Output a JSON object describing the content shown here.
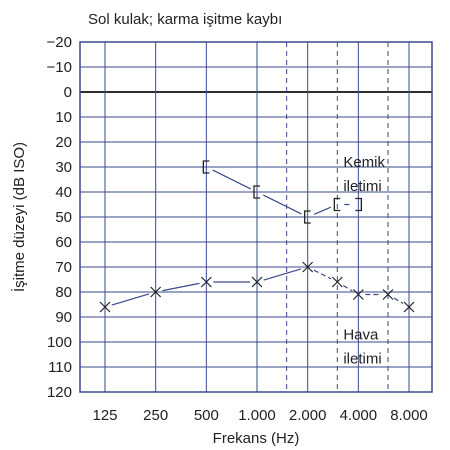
{
  "chart_data": {
    "type": "line",
    "title": "Sol kulak; karma işitme kaybı",
    "xlabel": "Frekans (Hz)",
    "ylabel": "İşitme düzeyi (dB ISO)",
    "x_scale": "log2",
    "y_inverted": true,
    "ylim": [
      -20,
      120
    ],
    "yticks": [
      -20,
      -10,
      0,
      10,
      20,
      30,
      40,
      50,
      60,
      70,
      80,
      90,
      100,
      110,
      120
    ],
    "ytick_labels": [
      "−20",
      "−10",
      "0",
      "10",
      "20",
      "30",
      "40",
      "50",
      "60",
      "70",
      "80",
      "90",
      "100",
      "110",
      "120"
    ],
    "xticks": [
      125,
      250,
      500,
      1000,
      2000,
      4000,
      8000
    ],
    "xtick_labels": [
      "125",
      "250",
      "500",
      "1.000",
      "2.000",
      "4.000",
      "8.000"
    ],
    "dashed_gridlines_x": [
      1500,
      3000,
      6000
    ],
    "grid": true,
    "series": [
      {
        "name": "Kemik iletimi",
        "marker": "bracket",
        "color": "#3a4a8c",
        "points": [
          [
            500,
            30
          ],
          [
            1000,
            40
          ],
          [
            2000,
            50
          ],
          [
            3000,
            45
          ],
          [
            4000,
            45
          ]
        ]
      },
      {
        "name": "Hava iletimi",
        "marker": "x",
        "color": "#3a4a8c",
        "points": [
          [
            125,
            86
          ],
          [
            250,
            80
          ],
          [
            500,
            76
          ],
          [
            1000,
            76
          ],
          [
            2000,
            70
          ],
          [
            3000,
            76
          ],
          [
            4000,
            81
          ],
          [
            6000,
            81
          ],
          [
            8000,
            86
          ]
        ]
      }
    ],
    "annotations": [
      {
        "lines": [
          "Kemik",
          "iletimi"
        ],
        "near_x": 3000,
        "near_y": 28
      },
      {
        "lines": [
          "Hava",
          "iletimi"
        ],
        "near_x": 3000,
        "near_y": 97
      }
    ],
    "colors": {
      "frame": "#3a4a8c",
      "grid": "#3a4a8c",
      "series": "#3a4a8c"
    }
  }
}
